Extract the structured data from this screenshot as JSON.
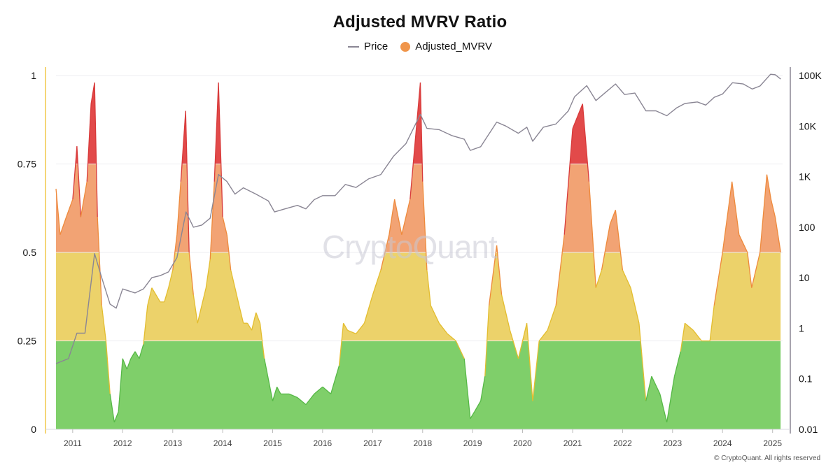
{
  "chart_data": {
    "type": "area",
    "title": "Adjusted MVRV Ratio",
    "legend": {
      "placement": "top-center",
      "entries": [
        "Price",
        "Adjusted_MVRV"
      ]
    },
    "grid": true,
    "x_ticks": [
      "2011",
      "2012",
      "2013",
      "2014",
      "2015",
      "2016",
      "2017",
      "2018",
      "2019",
      "2020",
      "2021",
      "2022",
      "2023",
      "2024",
      "2025"
    ],
    "xlim": [
      "2010-09-01",
      "2025-03-15"
    ],
    "y_left": {
      "ticks": [
        "0",
        "0.25",
        "0.5",
        "0.75",
        "1"
      ],
      "ylim": [
        0,
        1
      ]
    },
    "y_right": {
      "scale": "log",
      "ticks": [
        "0.01",
        "0.1",
        "1",
        "10",
        "100",
        "1K",
        "10K",
        "100K"
      ],
      "ylim": [
        0.01,
        100000
      ]
    },
    "bands": [
      {
        "from": 0,
        "to": 0.25,
        "color": "#7fcf6a"
      },
      {
        "from": 0.25,
        "to": 0.5,
        "color": "#ecd26a"
      },
      {
        "from": 0.5,
        "to": 0.75,
        "color": "#f2a374"
      },
      {
        "from": 0.75,
        "to": 1,
        "color": "#e24a4a"
      }
    ],
    "series": [
      {
        "name": "Adjusted_MVRV",
        "axis": "left",
        "color": "#f0954a",
        "points": [
          [
            "2010-09-01",
            0.68
          ],
          [
            "2010-10-01",
            0.55
          ],
          [
            "2010-11-15",
            0.6
          ],
          [
            "2011-01-01",
            0.65
          ],
          [
            "2011-02-01",
            0.8
          ],
          [
            "2011-03-01",
            0.6
          ],
          [
            "2011-04-15",
            0.7
          ],
          [
            "2011-05-15",
            0.92
          ],
          [
            "2011-06-10",
            0.98
          ],
          [
            "2011-07-01",
            0.6
          ],
          [
            "2011-08-01",
            0.35
          ],
          [
            "2011-09-01",
            0.25
          ],
          [
            "2011-10-01",
            0.1
          ],
          [
            "2011-11-01",
            0.02
          ],
          [
            "2011-12-01",
            0.05
          ],
          [
            "2012-01-01",
            0.2
          ],
          [
            "2012-02-01",
            0.17
          ],
          [
            "2012-03-01",
            0.2
          ],
          [
            "2012-04-01",
            0.22
          ],
          [
            "2012-05-01",
            0.2
          ],
          [
            "2012-06-01",
            0.24
          ],
          [
            "2012-07-01",
            0.35
          ],
          [
            "2012-08-01",
            0.4
          ],
          [
            "2012-09-01",
            0.38
          ],
          [
            "2012-10-01",
            0.36
          ],
          [
            "2012-11-01",
            0.36
          ],
          [
            "2012-12-01",
            0.4
          ],
          [
            "2013-01-01",
            0.45
          ],
          [
            "2013-02-01",
            0.55
          ],
          [
            "2013-03-01",
            0.7
          ],
          [
            "2013-04-05",
            0.9
          ],
          [
            "2013-05-01",
            0.5
          ],
          [
            "2013-06-01",
            0.38
          ],
          [
            "2013-07-01",
            0.3
          ],
          [
            "2013-08-01",
            0.35
          ],
          [
            "2013-09-01",
            0.4
          ],
          [
            "2013-10-01",
            0.48
          ],
          [
            "2013-11-01",
            0.7
          ],
          [
            "2013-12-01",
            0.98
          ],
          [
            "2014-01-01",
            0.6
          ],
          [
            "2014-02-01",
            0.55
          ],
          [
            "2014-03-01",
            0.45
          ],
          [
            "2014-04-01",
            0.4
          ],
          [
            "2014-05-01",
            0.35
          ],
          [
            "2014-06-01",
            0.3
          ],
          [
            "2014-07-01",
            0.3
          ],
          [
            "2014-08-01",
            0.28
          ],
          [
            "2014-09-01",
            0.33
          ],
          [
            "2014-10-01",
            0.3
          ],
          [
            "2014-11-01",
            0.2
          ],
          [
            "2015-01-01",
            0.08
          ],
          [
            "2015-02-01",
            0.12
          ],
          [
            "2015-03-01",
            0.1
          ],
          [
            "2015-05-01",
            0.1
          ],
          [
            "2015-07-01",
            0.09
          ],
          [
            "2015-09-01",
            0.07
          ],
          [
            "2015-11-01",
            0.1
          ],
          [
            "2016-01-01",
            0.12
          ],
          [
            "2016-03-01",
            0.1
          ],
          [
            "2016-05-01",
            0.18
          ],
          [
            "2016-06-01",
            0.3
          ],
          [
            "2016-07-01",
            0.28
          ],
          [
            "2016-09-01",
            0.27
          ],
          [
            "2016-11-01",
            0.3
          ],
          [
            "2017-01-01",
            0.38
          ],
          [
            "2017-03-01",
            0.45
          ],
          [
            "2017-05-01",
            0.55
          ],
          [
            "2017-06-10",
            0.65
          ],
          [
            "2017-08-01",
            0.55
          ],
          [
            "2017-10-01",
            0.65
          ],
          [
            "2017-12-15",
            0.98
          ],
          [
            "2018-01-01",
            0.7
          ],
          [
            "2018-02-01",
            0.45
          ],
          [
            "2018-03-01",
            0.35
          ],
          [
            "2018-05-01",
            0.3
          ],
          [
            "2018-07-01",
            0.27
          ],
          [
            "2018-09-01",
            0.25
          ],
          [
            "2018-11-01",
            0.2
          ],
          [
            "2018-12-15",
            0.03
          ],
          [
            "2019-01-15",
            0.05
          ],
          [
            "2019-03-01",
            0.08
          ],
          [
            "2019-04-01",
            0.15
          ],
          [
            "2019-05-01",
            0.35
          ],
          [
            "2019-06-26",
            0.52
          ],
          [
            "2019-08-01",
            0.38
          ],
          [
            "2019-10-01",
            0.28
          ],
          [
            "2019-12-01",
            0.2
          ],
          [
            "2020-02-01",
            0.3
          ],
          [
            "2020-03-15",
            0.08
          ],
          [
            "2020-05-01",
            0.25
          ],
          [
            "2020-07-01",
            0.28
          ],
          [
            "2020-09-01",
            0.35
          ],
          [
            "2020-11-01",
            0.55
          ],
          [
            "2021-01-01",
            0.85
          ],
          [
            "2021-03-15",
            0.92
          ],
          [
            "2021-05-01",
            0.7
          ],
          [
            "2021-06-20",
            0.4
          ],
          [
            "2021-08-01",
            0.45
          ],
          [
            "2021-10-01",
            0.58
          ],
          [
            "2021-11-10",
            0.62
          ],
          [
            "2022-01-01",
            0.45
          ],
          [
            "2022-03-01",
            0.4
          ],
          [
            "2022-05-01",
            0.3
          ],
          [
            "2022-06-20",
            0.08
          ],
          [
            "2022-08-01",
            0.15
          ],
          [
            "2022-10-01",
            0.1
          ],
          [
            "2022-11-20",
            0.02
          ],
          [
            "2023-01-15",
            0.15
          ],
          [
            "2023-03-01",
            0.22
          ],
          [
            "2023-04-01",
            0.3
          ],
          [
            "2023-06-01",
            0.28
          ],
          [
            "2023-08-01",
            0.25
          ],
          [
            "2023-10-01",
            0.25
          ],
          [
            "2023-11-01",
            0.35
          ],
          [
            "2024-01-01",
            0.5
          ],
          [
            "2024-03-10",
            0.7
          ],
          [
            "2024-05-01",
            0.55
          ],
          [
            "2024-07-01",
            0.5
          ],
          [
            "2024-08-01",
            0.4
          ],
          [
            "2024-10-01",
            0.5
          ],
          [
            "2024-11-20",
            0.72
          ],
          [
            "2024-12-20",
            0.65
          ],
          [
            "2025-01-20",
            0.6
          ],
          [
            "2025-03-01",
            0.5
          ]
        ]
      },
      {
        "name": "Price",
        "axis": "right",
        "color": "#8a8694",
        "points": [
          [
            "2010-09-01",
            0.2
          ],
          [
            "2010-12-01",
            0.25
          ],
          [
            "2011-02-01",
            0.8
          ],
          [
            "2011-04-01",
            0.8
          ],
          [
            "2011-06-10",
            30
          ],
          [
            "2011-08-01",
            10
          ],
          [
            "2011-10-01",
            3
          ],
          [
            "2011-11-15",
            2.5
          ],
          [
            "2012-01-01",
            6
          ],
          [
            "2012-04-01",
            5
          ],
          [
            "2012-06-01",
            6
          ],
          [
            "2012-08-01",
            10
          ],
          [
            "2012-10-01",
            11
          ],
          [
            "2012-12-01",
            13
          ],
          [
            "2013-02-01",
            25
          ],
          [
            "2013-04-08",
            200
          ],
          [
            "2013-06-01",
            100
          ],
          [
            "2013-08-01",
            110
          ],
          [
            "2013-10-01",
            150
          ],
          [
            "2013-12-01",
            1100
          ],
          [
            "2014-02-01",
            800
          ],
          [
            "2014-04-01",
            450
          ],
          [
            "2014-06-01",
            600
          ],
          [
            "2014-09-01",
            450
          ],
          [
            "2014-12-01",
            330
          ],
          [
            "2015-01-15",
            200
          ],
          [
            "2015-04-01",
            230
          ],
          [
            "2015-07-01",
            270
          ],
          [
            "2015-09-01",
            230
          ],
          [
            "2015-11-01",
            350
          ],
          [
            "2016-01-01",
            420
          ],
          [
            "2016-04-01",
            420
          ],
          [
            "2016-06-15",
            700
          ],
          [
            "2016-09-01",
            610
          ],
          [
            "2016-12-01",
            900
          ],
          [
            "2017-03-01",
            1100
          ],
          [
            "2017-06-01",
            2500
          ],
          [
            "2017-09-01",
            4500
          ],
          [
            "2017-12-15",
            17000
          ],
          [
            "2018-02-01",
            9000
          ],
          [
            "2018-05-01",
            8500
          ],
          [
            "2018-08-01",
            6500
          ],
          [
            "2018-11-01",
            5500
          ],
          [
            "2018-12-15",
            3300
          ],
          [
            "2019-03-01",
            3900
          ],
          [
            "2019-06-26",
            12000
          ],
          [
            "2019-09-01",
            10000
          ],
          [
            "2019-12-01",
            7200
          ],
          [
            "2020-02-01",
            9500
          ],
          [
            "2020-03-15",
            5000
          ],
          [
            "2020-06-01",
            9500
          ],
          [
            "2020-09-01",
            11000
          ],
          [
            "2020-12-01",
            20000
          ],
          [
            "2021-01-15",
            38000
          ],
          [
            "2021-04-14",
            63000
          ],
          [
            "2021-06-20",
            32000
          ],
          [
            "2021-09-01",
            47000
          ],
          [
            "2021-11-10",
            68000
          ],
          [
            "2022-01-15",
            42000
          ],
          [
            "2022-04-01",
            45000
          ],
          [
            "2022-06-20",
            20000
          ],
          [
            "2022-09-01",
            20000
          ],
          [
            "2022-11-20",
            16000
          ],
          [
            "2023-02-01",
            23000
          ],
          [
            "2023-04-01",
            28000
          ],
          [
            "2023-07-01",
            30000
          ],
          [
            "2023-09-01",
            26000
          ],
          [
            "2023-11-01",
            37000
          ],
          [
            "2024-01-01",
            43000
          ],
          [
            "2024-03-14",
            72000
          ],
          [
            "2024-06-01",
            68000
          ],
          [
            "2024-08-05",
            54000
          ],
          [
            "2024-10-01",
            62000
          ],
          [
            "2024-12-17",
            106000
          ],
          [
            "2025-01-20",
            104000
          ],
          [
            "2025-03-01",
            85000
          ]
        ]
      }
    ]
  },
  "watermark": "CryptoQuant",
  "copyright": "© CryptoQuant. All rights reserved"
}
